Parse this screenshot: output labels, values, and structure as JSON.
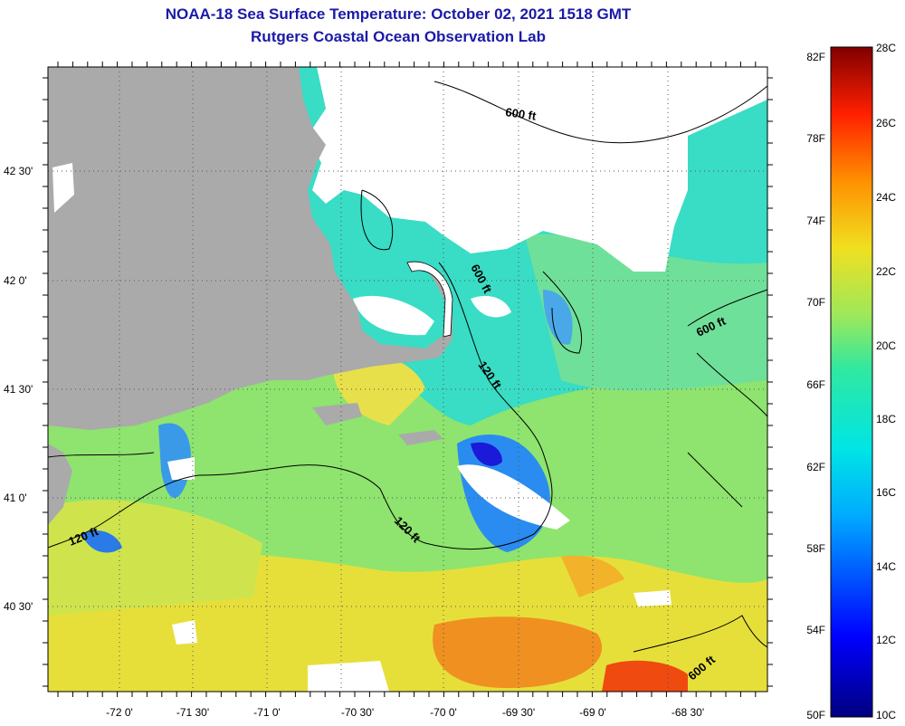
{
  "header": {
    "title": "NOAA-18 Sea Surface Temperature:  October 02, 2021 1518 GMT",
    "subtitle": "Rutgers Coastal Ocean Observation Lab"
  },
  "map": {
    "lon_labels": [
      "-72 0'",
      "-71 30'",
      "-71 0'",
      "-70 30'",
      "-70 0'",
      "-69 30'",
      "-69 0'",
      "-68 30'"
    ],
    "lat_labels": [
      "42 30'",
      "42 0'",
      "41 30'",
      "41 0'",
      "40 30'"
    ],
    "contour_labels": {
      "a": "600 ft",
      "b": "600 ft",
      "c": "600 ft",
      "d": "120 ft",
      "e": "120 ft",
      "f": "120 ft",
      "g": "600 ft"
    },
    "colors": {
      "land": "#aaaaaa",
      "cloud": "#ffffff",
      "water_teal": "#2fe0c8",
      "water_green": "#8fe86a",
      "water_yellow": "#e8e03a",
      "water_orange": "#f08a1a"
    }
  },
  "colorbar": {
    "fahrenheit": [
      "82F",
      "78F",
      "74F",
      "70F",
      "66F",
      "62F",
      "58F",
      "54F",
      "50F"
    ],
    "celsius": [
      "28C",
      "26C",
      "24C",
      "22C",
      "20C",
      "18C",
      "16C",
      "14C",
      "12C",
      "10C"
    ]
  }
}
